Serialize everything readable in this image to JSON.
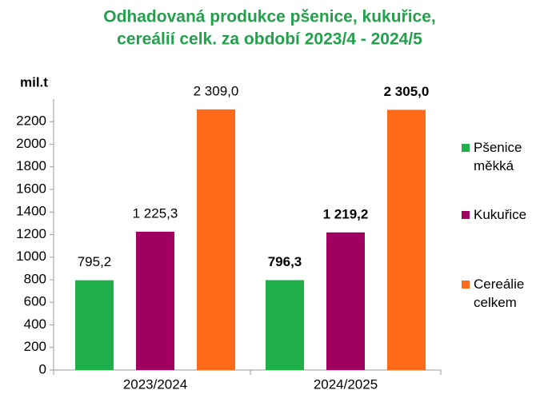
{
  "chart_data": {
    "type": "bar",
    "title": [
      "Odhadovaná produkce  pšenice, kukuřice,",
      "cereálií celk. za období  2023/4 - 2024/5"
    ],
    "y_label": "mil.t",
    "categories": [
      "2023/2024",
      "2024/2025"
    ],
    "series": [
      {
        "name": "Pšenice měkká",
        "color": "#1faf4b",
        "values": [
          795.2,
          796.3
        ],
        "value_labels": [
          "795,2",
          "796,3"
        ]
      },
      {
        "name": "Kukuřice",
        "color": "#a0005f",
        "values": [
          1225.3,
          1219.2
        ],
        "value_labels": [
          "1 225,3",
          "1 219,2"
        ]
      },
      {
        "name": "Cereálie celkem",
        "color": "#ff6a1a",
        "values": [
          2309.0,
          2305.0
        ],
        "value_labels": [
          "2 309,0",
          "2 305,0"
        ]
      }
    ],
    "ylim": [
      0,
      2400
    ],
    "yticks": [
      0,
      200,
      400,
      600,
      800,
      1000,
      1200,
      1400,
      1600,
      1800,
      2000,
      2200
    ],
    "grid": false,
    "legend": "right"
  }
}
